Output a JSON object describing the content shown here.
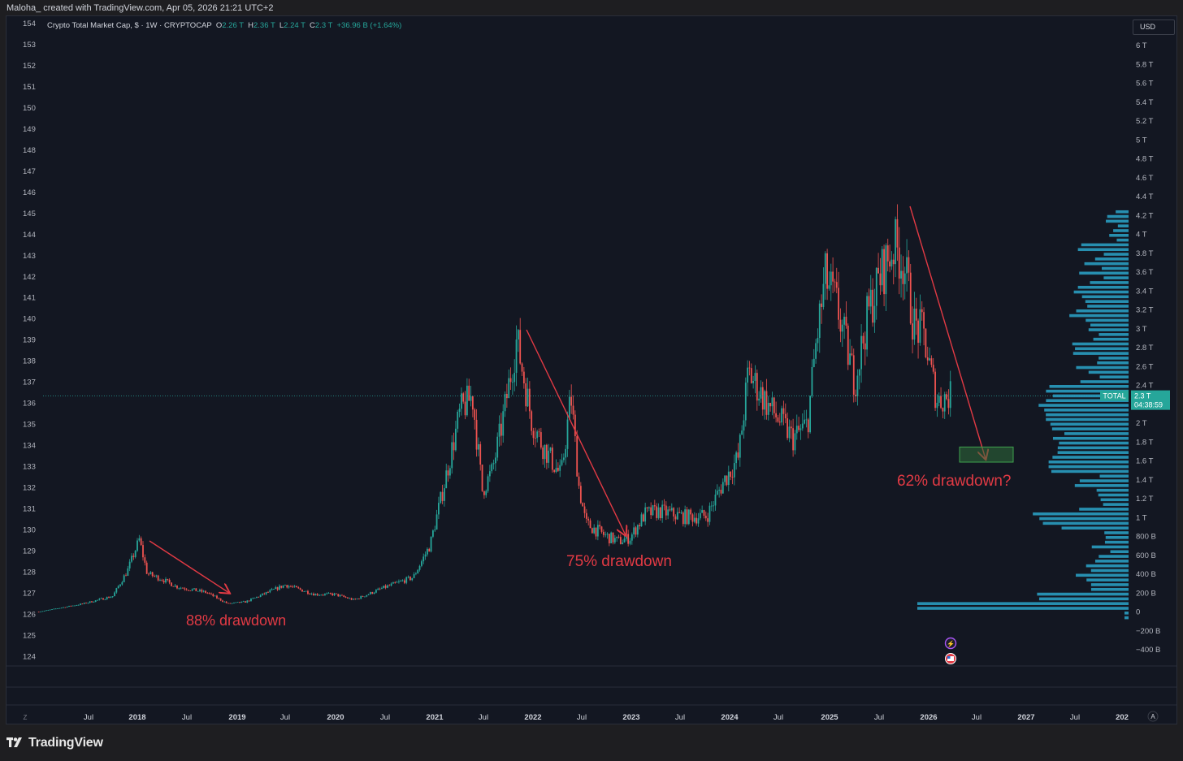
{
  "header": {
    "credit": "Maloha_ created with TradingView.com, Apr 05, 2026 21:21 UTC+2"
  },
  "legend": {
    "symbol": "Crypto Total Market Cap, $ · 1W · CRYPTOCAP",
    "o_label": "O",
    "o_value": "2.26 T",
    "h_label": "H",
    "h_value": "2.36 T",
    "l_label": "L",
    "l_value": "2.24 T",
    "c_label": "C",
    "c_value": "2.3 T",
    "change": "+36.96 B (+1.64%)"
  },
  "currency_button": "USD",
  "price_tag": {
    "symbol": "TOTAL",
    "value": "2.3 T",
    "countdown": "04:38:59"
  },
  "footer": {
    "brand": "TradingView",
    "auto_scale": "A",
    "zoom": "Z"
  },
  "colors": {
    "background": "#131722",
    "up": "#26a69a",
    "down": "#ef5350",
    "annotation": "#e23a44",
    "volume_profile": "#2a9cc0",
    "target_box": "#2f6e3a"
  },
  "chart_data": {
    "type": "candlestick",
    "title": "Crypto Total Market Cap, $ · 1W · CRYPTOCAP",
    "y_axis_right": {
      "ticks": [
        "6 T",
        "5.8 T",
        "5.6 T",
        "5.4 T",
        "5.2 T",
        "5 T",
        "4.8 T",
        "4.6 T",
        "4.4 T",
        "4.2 T",
        "4 T",
        "3.8 T",
        "3.6 T",
        "3.4 T",
        "3.2 T",
        "3 T",
        "2.8 T",
        "2.6 T",
        "2.4 T",
        "2.2 T",
        "2 T",
        "1.8 T",
        "1.6 T",
        "1.4 T",
        "1.2 T",
        "1 T",
        "800 B",
        "600 B",
        "400 B",
        "200 B",
        "0",
        "−200 B",
        "−400 B"
      ],
      "range": [
        -0.4,
        6.0
      ],
      "unit": "T"
    },
    "y_axis_left": {
      "ticks": [
        154,
        153,
        152,
        151,
        150,
        149,
        148,
        147,
        146,
        145,
        144,
        143,
        142,
        141,
        140,
        139,
        138,
        137,
        136,
        135,
        134,
        133,
        132,
        131,
        130,
        129,
        128,
        127,
        126,
        125,
        124
      ],
      "range": [
        124,
        154
      ]
    },
    "x_axis": {
      "ticks": [
        "Jul",
        "2018",
        "Jul",
        "2019",
        "Jul",
        "2020",
        "Jul",
        "2021",
        "Jul",
        "2022",
        "Jul",
        "2023",
        "Jul",
        "2024",
        "Jul",
        "2025",
        "Jul",
        "2026",
        "Jul",
        "2027",
        "Jul",
        "202"
      ]
    },
    "key_prices": [
      {
        "date": "2017-06",
        "close": 0.1
      },
      {
        "date": "2018-01",
        "high": 0.83
      },
      {
        "date": "2018-12",
        "low": 0.1
      },
      {
        "date": "2020-03",
        "low": 0.14
      },
      {
        "date": "2021-05",
        "high": 2.52
      },
      {
        "date": "2021-11",
        "high": 3.0
      },
      {
        "date": "2022-11",
        "low": 0.75
      },
      {
        "date": "2024-03",
        "high": 2.7
      },
      {
        "date": "2024-12",
        "high": 3.7
      },
      {
        "date": "2025-10",
        "high": 4.3
      },
      {
        "date": "2026-04",
        "close": 2.3
      }
    ],
    "current": {
      "open": 2.26,
      "high": 2.36,
      "low": 2.24,
      "close": 2.3
    },
    "annotations": [
      {
        "text": "88% drawdown"
      },
      {
        "text": "75% drawdown"
      },
      {
        "text": "62% drawdown?",
        "target_zone": [
          1.6,
          1.76
        ]
      }
    ],
    "grid": false,
    "volume_profile": true
  }
}
